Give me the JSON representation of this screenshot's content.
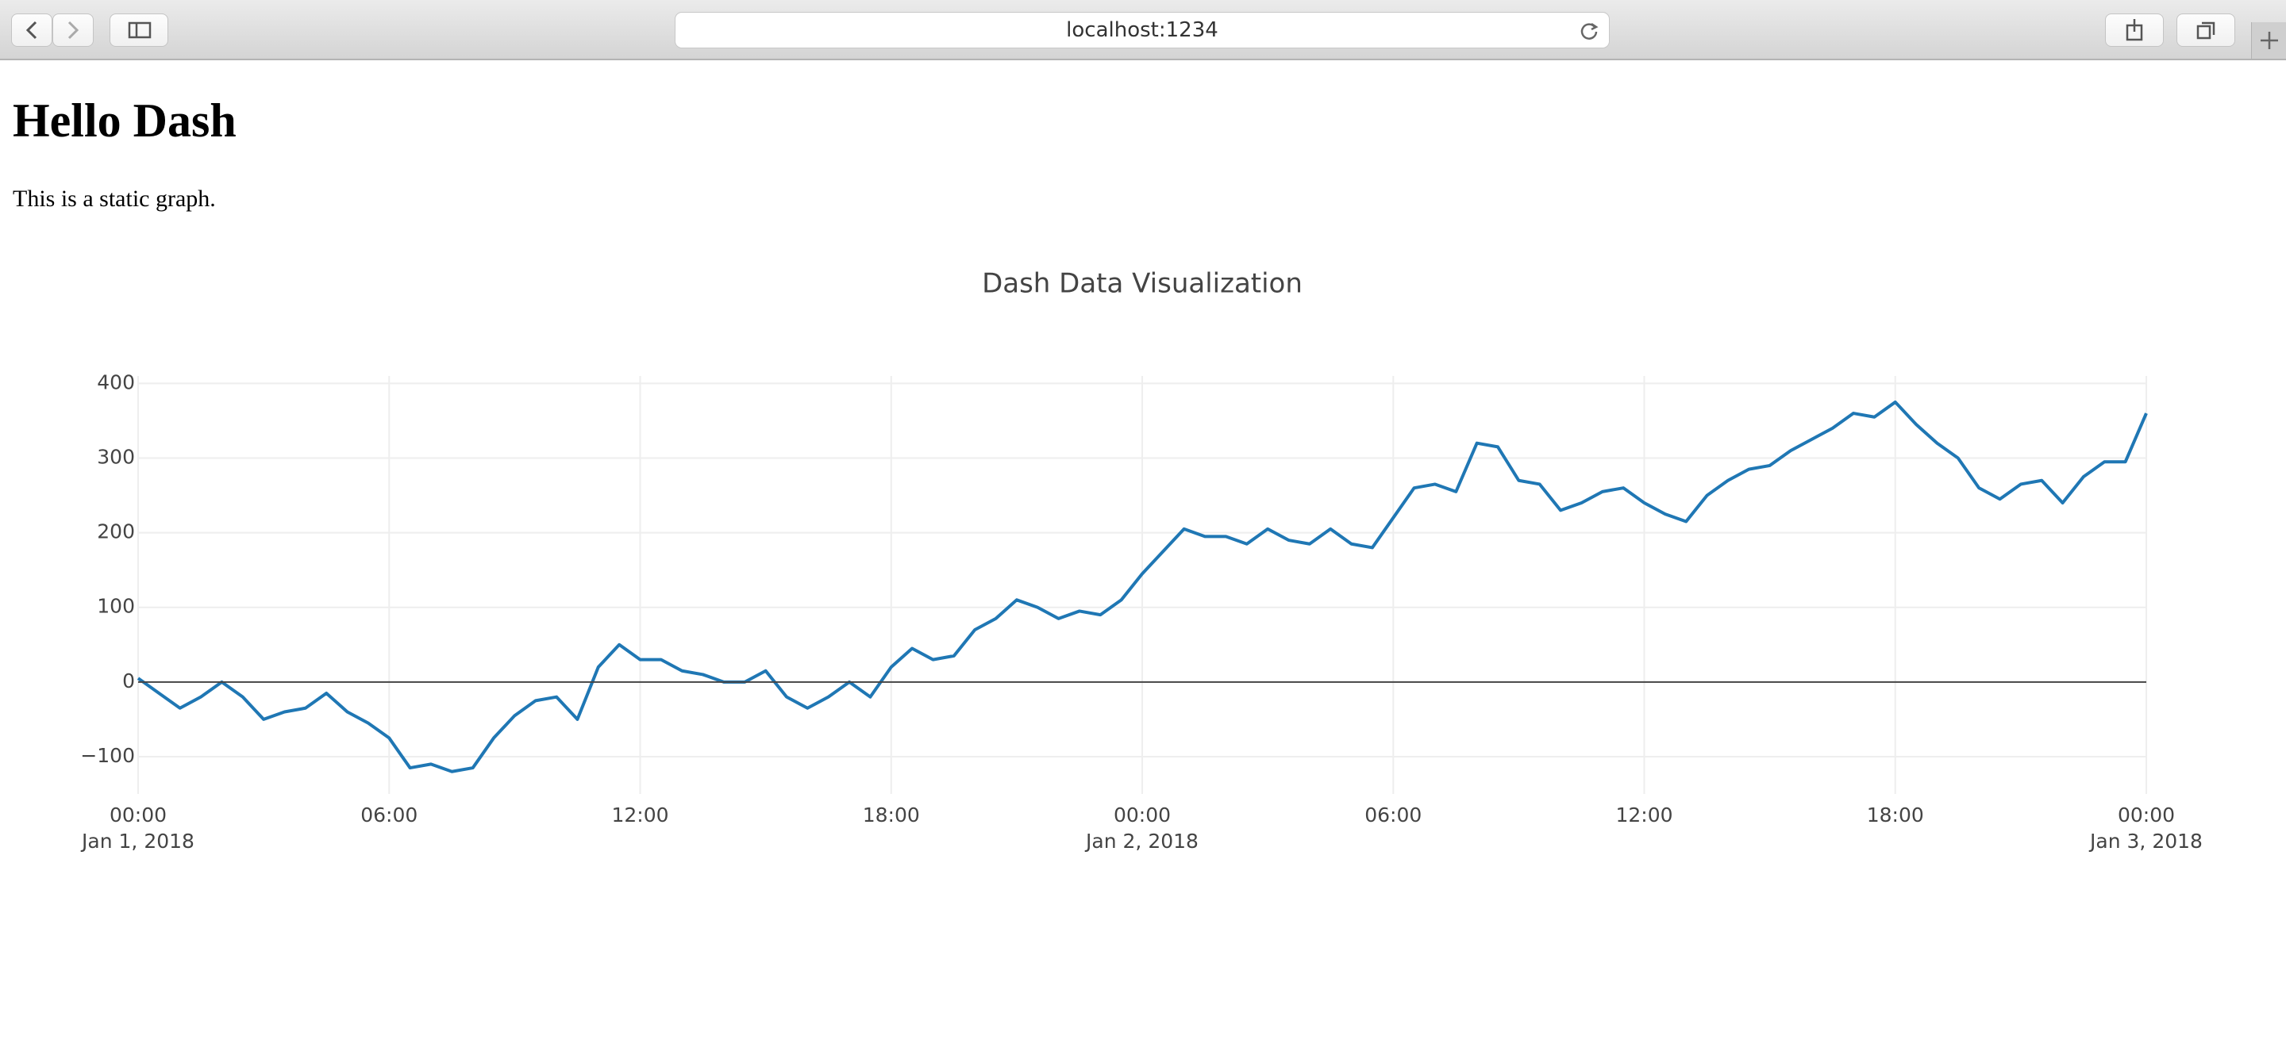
{
  "browser": {
    "url": "localhost:1234"
  },
  "page": {
    "heading": "Hello Dash",
    "text": "This is a static graph."
  },
  "chart_data": {
    "type": "line",
    "title": "Dash Data Visualization",
    "x": [
      "2018-01-01T00:00",
      "2018-01-01T00:30",
      "2018-01-01T01:00",
      "2018-01-01T01:30",
      "2018-01-01T02:00",
      "2018-01-01T02:30",
      "2018-01-01T03:00",
      "2018-01-01T03:30",
      "2018-01-01T04:00",
      "2018-01-01T04:30",
      "2018-01-01T05:00",
      "2018-01-01T05:30",
      "2018-01-01T06:00",
      "2018-01-01T06:30",
      "2018-01-01T07:00",
      "2018-01-01T07:30",
      "2018-01-01T08:00",
      "2018-01-01T08:30",
      "2018-01-01T09:00",
      "2018-01-01T09:30",
      "2018-01-01T10:00",
      "2018-01-01T10:30",
      "2018-01-01T11:00",
      "2018-01-01T11:30",
      "2018-01-01T12:00",
      "2018-01-01T12:30",
      "2018-01-01T13:00",
      "2018-01-01T13:30",
      "2018-01-01T14:00",
      "2018-01-01T14:30",
      "2018-01-01T15:00",
      "2018-01-01T15:30",
      "2018-01-01T16:00",
      "2018-01-01T16:30",
      "2018-01-01T17:00",
      "2018-01-01T17:30",
      "2018-01-01T18:00",
      "2018-01-01T18:30",
      "2018-01-01T19:00",
      "2018-01-01T19:30",
      "2018-01-01T20:00",
      "2018-01-01T20:30",
      "2018-01-01T21:00",
      "2018-01-01T21:30",
      "2018-01-01T22:00",
      "2018-01-01T22:30",
      "2018-01-01T23:00",
      "2018-01-01T23:30",
      "2018-01-02T00:00",
      "2018-01-02T00:30",
      "2018-01-02T01:00",
      "2018-01-02T01:30",
      "2018-01-02T02:00",
      "2018-01-02T02:30",
      "2018-01-02T03:00",
      "2018-01-02T03:30",
      "2018-01-02T04:00",
      "2018-01-02T04:30",
      "2018-01-02T05:00",
      "2018-01-02T05:30",
      "2018-01-02T06:00",
      "2018-01-02T06:30",
      "2018-01-02T07:00",
      "2018-01-02T07:30",
      "2018-01-02T08:00",
      "2018-01-02T08:30",
      "2018-01-02T09:00",
      "2018-01-02T09:30",
      "2018-01-02T10:00",
      "2018-01-02T10:30",
      "2018-01-02T11:00",
      "2018-01-02T11:30",
      "2018-01-02T12:00",
      "2018-01-02T12:30",
      "2018-01-02T13:00",
      "2018-01-02T13:30",
      "2018-01-02T14:00",
      "2018-01-02T14:30",
      "2018-01-02T15:00",
      "2018-01-02T15:30",
      "2018-01-02T16:00",
      "2018-01-02T16:30",
      "2018-01-02T17:00",
      "2018-01-02T17:30",
      "2018-01-02T18:00",
      "2018-01-02T18:30",
      "2018-01-02T19:00",
      "2018-01-02T19:30",
      "2018-01-02T20:00",
      "2018-01-02T20:30",
      "2018-01-02T21:00",
      "2018-01-02T21:30",
      "2018-01-02T22:00",
      "2018-01-02T22:30",
      "2018-01-02T23:00",
      "2018-01-02T23:30",
      "2018-01-03T00:00"
    ],
    "series": [
      {
        "color": "#1f77b4",
        "values": [
          5,
          -15,
          -35,
          -20,
          0,
          -20,
          -50,
          -40,
          -35,
          -15,
          -40,
          -55,
          -75,
          -115,
          -110,
          -120,
          -115,
          -75,
          -45,
          -25,
          -20,
          -50,
          20,
          50,
          30,
          30,
          15,
          10,
          0,
          0,
          15,
          -20,
          -35,
          -20,
          0,
          -20,
          20,
          45,
          30,
          35,
          70,
          85,
          110,
          100,
          85,
          95,
          90,
          110,
          145,
          175,
          205,
          195,
          195,
          185,
          205,
          190,
          185,
          205,
          185,
          180,
          220,
          260,
          265,
          255,
          320,
          315,
          270,
          265,
          230,
          240,
          255,
          260,
          240,
          225,
          215,
          250,
          270,
          285,
          290,
          310,
          325,
          340,
          360,
          355,
          375,
          345,
          320,
          300,
          260,
          245,
          265,
          270,
          240,
          275,
          295,
          295,
          360
        ]
      }
    ],
    "xlim": [
      "2018-01-01T00:00",
      "2018-01-03T00:00"
    ],
    "xticks": [
      {
        "value": "2018-01-01T00:00",
        "label": "00:00",
        "date": "Jan 1, 2018"
      },
      {
        "value": "2018-01-01T06:00",
        "label": "06:00"
      },
      {
        "value": "2018-01-01T12:00",
        "label": "12:00"
      },
      {
        "value": "2018-01-01T18:00",
        "label": "18:00"
      },
      {
        "value": "2018-01-02T00:00",
        "label": "00:00",
        "date": "Jan 2, 2018"
      },
      {
        "value": "2018-01-02T06:00",
        "label": "06:00"
      },
      {
        "value": "2018-01-02T12:00",
        "label": "12:00"
      },
      {
        "value": "2018-01-02T18:00",
        "label": "18:00"
      },
      {
        "value": "2018-01-03T00:00",
        "label": "00:00",
        "date": "Jan 3, 2018"
      }
    ],
    "ylim": [
      -150,
      410
    ],
    "yticks": [
      {
        "value": -100,
        "label": "−100"
      },
      0,
      100,
      200,
      300,
      400
    ],
    "grid": true,
    "zeroline": true
  }
}
